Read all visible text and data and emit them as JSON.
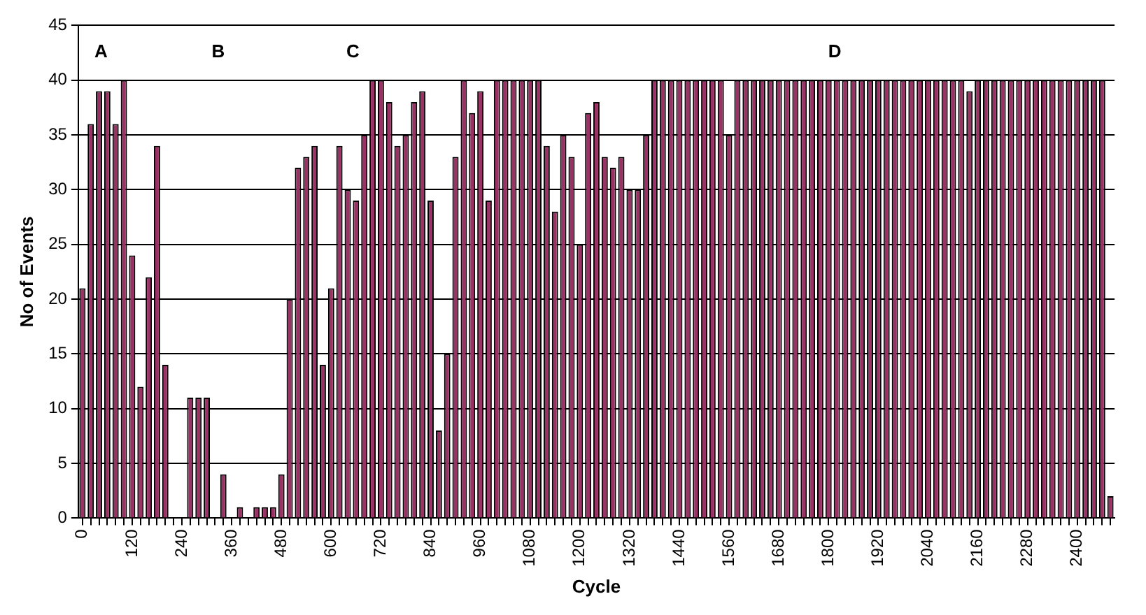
{
  "chart_data": {
    "type": "bar",
    "xlabel": "Cycle",
    "ylabel": "No of Events",
    "annotations": [
      "A",
      "B",
      "C",
      "D"
    ],
    "categories": [
      "0",
      null,
      null,
      null,
      null,
      null,
      "120",
      null,
      null,
      null,
      null,
      null,
      "240",
      null,
      null,
      null,
      null,
      null,
      "360",
      null,
      null,
      null,
      null,
      null,
      "480",
      null,
      null,
      null,
      null,
      null,
      "600",
      null,
      null,
      null,
      null,
      null,
      "720",
      null,
      null,
      null,
      null,
      null,
      "840",
      null,
      null,
      null,
      null,
      null,
      "960",
      null,
      null,
      null,
      null,
      null,
      "1080",
      null,
      null,
      null,
      null,
      null,
      "1200",
      null,
      null,
      null,
      null,
      null,
      "1320",
      null,
      null,
      null,
      null,
      null,
      "1440",
      null,
      null,
      null,
      null,
      null,
      "1560",
      null,
      null,
      null,
      null,
      null,
      "1680",
      null,
      null,
      null,
      null,
      null,
      "1800",
      null,
      null,
      null,
      null,
      null,
      "1920",
      null,
      null,
      null,
      null,
      null,
      "2040",
      null,
      null,
      null,
      null,
      null,
      "2160",
      null,
      null,
      null,
      null,
      null,
      "2280",
      null,
      null,
      null,
      null,
      null,
      "2400",
      null,
      null,
      null,
      null
    ],
    "values": [
      21,
      36,
      39,
      39,
      36,
      40,
      24,
      12,
      22,
      34,
      14,
      0,
      0,
      11,
      11,
      11,
      0,
      4,
      0,
      1,
      0,
      1,
      1,
      1,
      4,
      20,
      32,
      33,
      34,
      14,
      21,
      34,
      30,
      29,
      35,
      40,
      40,
      38,
      34,
      35,
      38,
      39,
      29,
      8,
      15,
      33,
      40,
      37,
      39,
      29,
      40,
      40,
      40,
      40,
      40,
      40,
      34,
      28,
      35,
      33,
      25,
      37,
      38,
      33,
      32,
      33,
      30,
      30,
      35,
      40,
      40,
      40,
      40,
      40,
      40,
      40,
      40,
      40,
      35,
      40,
      40,
      40,
      40,
      40,
      40,
      40,
      40,
      40,
      40,
      40,
      40,
      40,
      40,
      40,
      40,
      40,
      40,
      40,
      40,
      40,
      40,
      40,
      40,
      40,
      40,
      40,
      40,
      39,
      40,
      40,
      40,
      40,
      40,
      40,
      40,
      40,
      40,
      40,
      40,
      40,
      40,
      40,
      40,
      40,
      2
    ],
    "color": "#993366",
    "ylim": [
      0,
      45
    ],
    "yticks": [
      0,
      5,
      10,
      15,
      20,
      25,
      30,
      35,
      40,
      45
    ],
    "grid": "y",
    "legend": false
  }
}
